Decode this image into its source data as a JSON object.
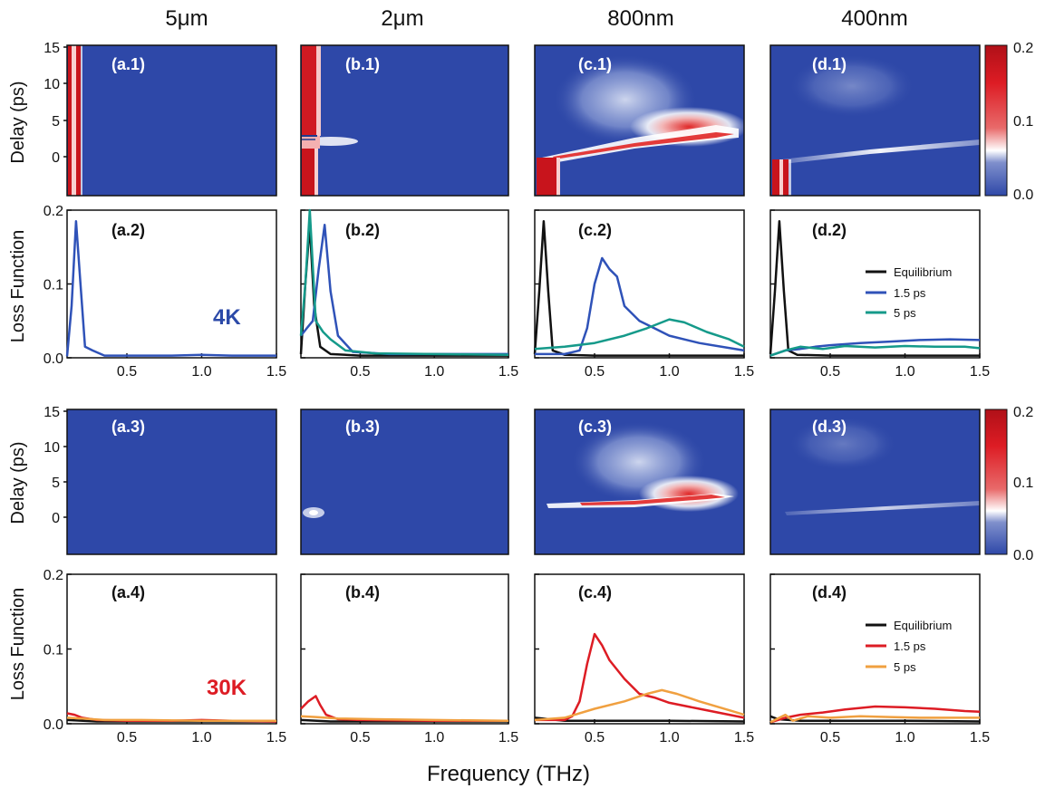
{
  "columns": [
    "5μm",
    "2μm",
    "800nm",
    "400nm"
  ],
  "xlabel": "Frequency (THz)",
  "heatmap_ylabel": "Delay (ps)",
  "loss_ylabel": "Loss Function",
  "temps": [
    {
      "label": "4K",
      "color": "#2c4aa8"
    },
    {
      "label": "30K",
      "color": "#dd1c24"
    }
  ],
  "colorbar": {
    "ticks": [
      "0.2",
      "0.1",
      "0.0"
    ],
    "stops": [
      "#2e48a8",
      "#ffffff",
      "#dd1c24",
      "#7a0a12"
    ]
  },
  "heatmap_yticks": [
    "15",
    "10",
    "5",
    "0"
  ],
  "loss_yticks": [
    "0.2",
    "0.1",
    "0.0"
  ],
  "xticks": [
    "0.5",
    "1.0",
    "1.5"
  ],
  "panel_labels": {
    "row1": [
      "(a.1)",
      "(b.1)",
      "(c.1)",
      "(d.1)"
    ],
    "row2": [
      "(a.2)",
      "(b.2)",
      "(c.2)",
      "(d.2)"
    ],
    "row3": [
      "(a.3)",
      "(b.3)",
      "(c.3)",
      "(d.3)"
    ],
    "row4": [
      "(a.4)",
      "(b.4)",
      "(c.4)",
      "(d.4)"
    ]
  },
  "legend_4K": [
    {
      "name": "Equilibrium",
      "color": "#111111"
    },
    {
      "name": "1.5 ps",
      "color": "#2f52b8"
    },
    {
      "name": "5 ps",
      "color": "#159a8a"
    }
  ],
  "legend_30K": [
    {
      "name": "Equilibrium",
      "color": "#111111"
    },
    {
      "name": "1.5 ps",
      "color": "#dd1c24"
    },
    {
      "name": "5 ps",
      "color": "#f0a040"
    }
  ],
  "chart_data": [
    {
      "type": "line",
      "title": "(a.2)",
      "xlim": [
        0.1,
        1.5
      ],
      "ylim": [
        0,
        0.2
      ],
      "series": [
        {
          "name": "1.5 ps",
          "color": "#2f52b8",
          "x": [
            0.1,
            0.13,
            0.16,
            0.19,
            0.22,
            0.27,
            0.35,
            0.5,
            0.8,
            1.0,
            1.2,
            1.5
          ],
          "y": [
            0.002,
            0.07,
            0.185,
            0.1,
            0.015,
            0.01,
            0.003,
            0.003,
            0.003,
            0.004,
            0.003,
            0.003
          ]
        }
      ]
    },
    {
      "type": "line",
      "title": "(b.2)",
      "xlim": [
        0.1,
        1.5
      ],
      "ylim": [
        0,
        0.2
      ],
      "series": [
        {
          "name": "Equilibrium",
          "color": "#111111",
          "x": [
            0.1,
            0.13,
            0.16,
            0.19,
            0.23,
            0.3,
            0.5,
            1.0,
            1.5
          ],
          "y": [
            0.005,
            0.1,
            0.18,
            0.07,
            0.015,
            0.005,
            0.003,
            0.003,
            0.003
          ]
        },
        {
          "name": "1.5 ps",
          "color": "#2f52b8",
          "x": [
            0.1,
            0.14,
            0.18,
            0.22,
            0.26,
            0.3,
            0.35,
            0.45,
            0.7,
            1.0,
            1.5
          ],
          "y": [
            0.03,
            0.04,
            0.05,
            0.12,
            0.18,
            0.09,
            0.03,
            0.008,
            0.005,
            0.005,
            0.005
          ]
        },
        {
          "name": "5 ps",
          "color": "#159a8a",
          "x": [
            0.1,
            0.13,
            0.16,
            0.2,
            0.25,
            0.3,
            0.4,
            0.6,
            1.0,
            1.5
          ],
          "y": [
            0.03,
            0.1,
            0.2,
            0.05,
            0.035,
            0.025,
            0.01,
            0.006,
            0.005,
            0.004
          ]
        }
      ]
    },
    {
      "type": "line",
      "title": "(c.2)",
      "xlim": [
        0.1,
        1.5
      ],
      "ylim": [
        0,
        0.2
      ],
      "series": [
        {
          "name": "Equilibrium",
          "color": "#111111",
          "x": [
            0.1,
            0.13,
            0.16,
            0.19,
            0.22,
            0.3,
            0.5,
            1.0,
            1.5
          ],
          "y": [
            0.005,
            0.09,
            0.185,
            0.09,
            0.01,
            0.004,
            0.003,
            0.003,
            0.003
          ]
        },
        {
          "name": "1.5 ps",
          "color": "#2f52b8",
          "x": [
            0.1,
            0.3,
            0.4,
            0.45,
            0.5,
            0.55,
            0.6,
            0.65,
            0.7,
            0.8,
            0.9,
            1.0,
            1.2,
            1.5
          ],
          "y": [
            0.005,
            0.005,
            0.01,
            0.04,
            0.1,
            0.135,
            0.12,
            0.11,
            0.07,
            0.05,
            0.04,
            0.03,
            0.02,
            0.01
          ]
        },
        {
          "name": "5 ps",
          "color": "#159a8a",
          "x": [
            0.1,
            0.3,
            0.5,
            0.7,
            0.85,
            1.0,
            1.1,
            1.25,
            1.4,
            1.5
          ],
          "y": [
            0.012,
            0.015,
            0.02,
            0.03,
            0.04,
            0.052,
            0.048,
            0.035,
            0.025,
            0.015
          ]
        }
      ]
    },
    {
      "type": "line",
      "title": "(d.2)",
      "xlim": [
        0.1,
        1.5
      ],
      "ylim": [
        0,
        0.2
      ],
      "series": [
        {
          "name": "Equilibrium",
          "color": "#111111",
          "x": [
            0.1,
            0.13,
            0.16,
            0.19,
            0.22,
            0.28,
            0.5,
            1.0,
            1.5
          ],
          "y": [
            0.005,
            0.09,
            0.185,
            0.09,
            0.01,
            0.004,
            0.003,
            0.003,
            0.003
          ]
        },
        {
          "name": "1.5 ps",
          "color": "#2f52b8",
          "x": [
            0.1,
            0.2,
            0.3,
            0.4,
            0.5,
            0.7,
            0.9,
            1.1,
            1.3,
            1.5
          ],
          "y": [
            0.003,
            0.01,
            0.012,
            0.015,
            0.017,
            0.02,
            0.022,
            0.024,
            0.025,
            0.024
          ]
        },
        {
          "name": "5 ps",
          "color": "#159a8a",
          "x": [
            0.1,
            0.2,
            0.3,
            0.45,
            0.6,
            0.8,
            1.0,
            1.2,
            1.4,
            1.5
          ],
          "y": [
            0.003,
            0.01,
            0.015,
            0.012,
            0.016,
            0.014,
            0.016,
            0.015,
            0.015,
            0.013
          ]
        }
      ]
    },
    {
      "type": "line",
      "title": "(a.4)",
      "xlim": [
        0.1,
        1.5
      ],
      "ylim": [
        0,
        0.2
      ],
      "series": [
        {
          "name": "Equilibrium",
          "color": "#111111",
          "x": [
            0.1,
            0.3,
            0.6,
            1.0,
            1.5
          ],
          "y": [
            0.005,
            0.003,
            0.003,
            0.003,
            0.003
          ]
        },
        {
          "name": "1.5 ps",
          "color": "#dd1c24",
          "x": [
            0.1,
            0.15,
            0.2,
            0.3,
            0.5,
            0.8,
            1.0,
            1.2,
            1.5
          ],
          "y": [
            0.014,
            0.012,
            0.008,
            0.005,
            0.004,
            0.004,
            0.005,
            0.004,
            0.003
          ]
        },
        {
          "name": "5 ps",
          "color": "#f0a040",
          "x": [
            0.1,
            0.2,
            0.35,
            0.6,
            1.0,
            1.5
          ],
          "y": [
            0.008,
            0.007,
            0.005,
            0.005,
            0.004,
            0.004
          ]
        }
      ]
    },
    {
      "type": "line",
      "title": "(b.4)",
      "xlim": [
        0.1,
        1.5
      ],
      "ylim": [
        0,
        0.2
      ],
      "series": [
        {
          "name": "Equilibrium",
          "color": "#111111",
          "x": [
            0.1,
            0.3,
            0.6,
            1.0,
            1.5
          ],
          "y": [
            0.005,
            0.003,
            0.003,
            0.003,
            0.003
          ]
        },
        {
          "name": "1.5 ps",
          "color": "#dd1c24",
          "x": [
            0.1,
            0.15,
            0.2,
            0.23,
            0.27,
            0.35,
            0.5,
            1.0,
            1.5
          ],
          "y": [
            0.02,
            0.03,
            0.037,
            0.025,
            0.012,
            0.006,
            0.005,
            0.004,
            0.004
          ]
        },
        {
          "name": "5 ps",
          "color": "#f0a040",
          "x": [
            0.1,
            0.2,
            0.35,
            0.6,
            1.0,
            1.5
          ],
          "y": [
            0.01,
            0.009,
            0.007,
            0.006,
            0.005,
            0.004
          ]
        }
      ]
    },
    {
      "type": "line",
      "title": "(c.4)",
      "xlim": [
        0.1,
        1.5
      ],
      "ylim": [
        0,
        0.2
      ],
      "series": [
        {
          "name": "Equilibrium",
          "color": "#111111",
          "x": [
            0.1,
            0.3,
            0.6,
            1.0,
            1.5
          ],
          "y": [
            0.008,
            0.004,
            0.004,
            0.004,
            0.003
          ]
        },
        {
          "name": "1.5 ps",
          "color": "#dd1c24",
          "x": [
            0.1,
            0.3,
            0.35,
            0.4,
            0.45,
            0.5,
            0.55,
            0.6,
            0.7,
            0.8,
            0.9,
            1.0,
            1.2,
            1.5
          ],
          "y": [
            0.005,
            0.005,
            0.01,
            0.03,
            0.08,
            0.12,
            0.105,
            0.085,
            0.06,
            0.04,
            0.035,
            0.028,
            0.02,
            0.008
          ]
        },
        {
          "name": "5 ps",
          "color": "#f0a040",
          "x": [
            0.1,
            0.3,
            0.5,
            0.7,
            0.85,
            0.95,
            1.05,
            1.2,
            1.4,
            1.5
          ],
          "y": [
            0.005,
            0.008,
            0.02,
            0.03,
            0.04,
            0.045,
            0.04,
            0.03,
            0.018,
            0.012
          ]
        }
      ]
    },
    {
      "type": "line",
      "title": "(d.4)",
      "xlim": [
        0.1,
        1.5
      ],
      "ylim": [
        0,
        0.2
      ],
      "series": [
        {
          "name": "Equilibrium",
          "color": "#111111",
          "x": [
            0.1,
            0.15,
            0.3,
            0.6,
            1.0,
            1.5
          ],
          "y": [
            0.01,
            0.006,
            0.004,
            0.004,
            0.004,
            0.003
          ]
        },
        {
          "name": "1.5 ps",
          "color": "#dd1c24",
          "x": [
            0.1,
            0.2,
            0.3,
            0.45,
            0.6,
            0.8,
            1.0,
            1.2,
            1.4,
            1.5
          ],
          "y": [
            0.002,
            0.008,
            0.012,
            0.015,
            0.019,
            0.023,
            0.022,
            0.02,
            0.017,
            0.016
          ]
        },
        {
          "name": "5 ps",
          "color": "#f0a040",
          "x": [
            0.1,
            0.2,
            0.25,
            0.35,
            0.5,
            0.7,
            0.9,
            1.1,
            1.3,
            1.5
          ],
          "y": [
            0.002,
            0.012,
            0.004,
            0.01,
            0.008,
            0.01,
            0.009,
            0.008,
            0.008,
            0.008
          ]
        }
      ]
    }
  ]
}
